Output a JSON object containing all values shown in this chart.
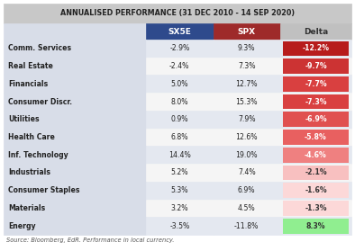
{
  "title": "ANNUALISED PERFORMANCE (31 DEC 2010 - 14 SEP 2020)",
  "rows": [
    {
      "sector": "Comm. Services",
      "sx5e": "-2.9%",
      "spx": "9.3%",
      "delta": "-12.2%",
      "delta_val": -12.2
    },
    {
      "sector": "Real Estate",
      "sx5e": "-2.4%",
      "spx": "7.3%",
      "delta": "-9.7%",
      "delta_val": -9.7
    },
    {
      "sector": "Financials",
      "sx5e": "5.0%",
      "spx": "12.7%",
      "delta": "-7.7%",
      "delta_val": -7.7
    },
    {
      "sector": "Consumer Discr.",
      "sx5e": "8.0%",
      "spx": "15.3%",
      "delta": "-7.3%",
      "delta_val": -7.3
    },
    {
      "sector": "Utilities",
      "sx5e": "0.9%",
      "spx": "7.9%",
      "delta": "-6.9%",
      "delta_val": -6.9
    },
    {
      "sector": "Health Care",
      "sx5e": "6.8%",
      "spx": "12.6%",
      "delta": "-5.8%",
      "delta_val": -5.8
    },
    {
      "sector": "Inf. Technology",
      "sx5e": "14.4%",
      "spx": "19.0%",
      "delta": "-4.6%",
      "delta_val": -4.6
    },
    {
      "sector": "Industrials",
      "sx5e": "5.2%",
      "spx": "7.4%",
      "delta": "-2.1%",
      "delta_val": -2.1
    },
    {
      "sector": "Consumer Staples",
      "sx5e": "5.3%",
      "spx": "6.9%",
      "delta": "-1.6%",
      "delta_val": -1.6
    },
    {
      "sector": "Materials",
      "sx5e": "3.2%",
      "spx": "4.5%",
      "delta": "-1.3%",
      "delta_val": -1.3
    },
    {
      "sector": "Energy",
      "sx5e": "-3.5%",
      "spx": "-11.8%",
      "delta": "8.3%",
      "delta_val": 8.3
    }
  ],
  "source_text": "Source: Bloomberg, EdR. Performance in local currency.",
  "title_bg": "#c8c8c8",
  "sector_col_bg": "#d8dde8",
  "header_sx5e_color": "#2e4a8c",
  "header_spx_color": "#9e2a2a",
  "header_delta_color": "#c0c0c0",
  "row_bg_alt": "#e4e8f0",
  "row_bg_white": "#f5f5f5",
  "border_color": "#ffffff"
}
